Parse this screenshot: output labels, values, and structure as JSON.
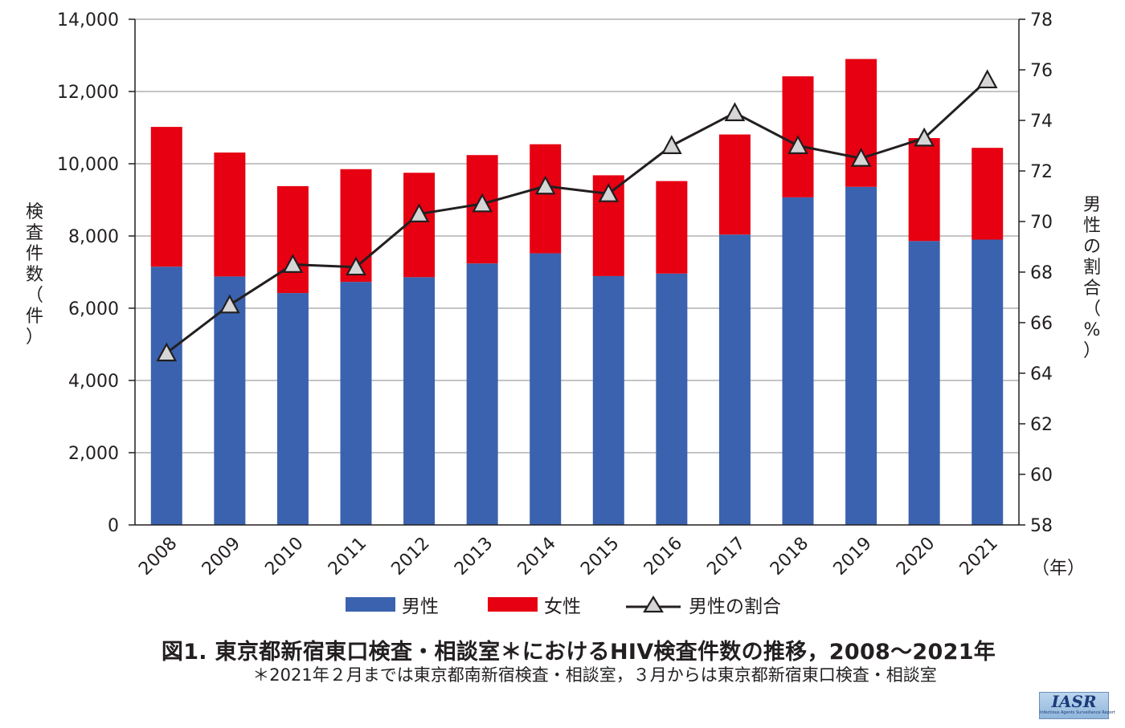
{
  "chart_data": {
    "type": "bar+line",
    "stacked": true,
    "categories": [
      "2008",
      "2009",
      "2010",
      "2011",
      "2012",
      "2013",
      "2014",
      "2015",
      "2016",
      "2017",
      "2018",
      "2019",
      "2020",
      "2021"
    ],
    "series": [
      {
        "name": "男性",
        "type": "bar",
        "axis": "left",
        "color": "#3a62ae",
        "values": [
          7150,
          6880,
          6420,
          6730,
          6860,
          7240,
          7520,
          6890,
          6960,
          8040,
          9070,
          9360,
          7860,
          7900
        ]
      },
      {
        "name": "女性",
        "type": "bar",
        "axis": "left",
        "color": "#e60012",
        "values": [
          3870,
          3430,
          2960,
          3120,
          2890,
          3000,
          3020,
          2790,
          2560,
          2770,
          3350,
          3540,
          2850,
          2540
        ]
      },
      {
        "name": "男性の割合",
        "type": "line",
        "axis": "right",
        "color": "#231f20",
        "values": [
          64.8,
          66.7,
          68.3,
          68.2,
          70.3,
          70.7,
          71.4,
          71.1,
          73.0,
          74.3,
          73.0,
          72.5,
          73.3,
          75.6
        ]
      }
    ],
    "y_left": {
      "label_chars": [
        "検",
        "査",
        "件",
        "数",
        "（",
        "件",
        "）"
      ],
      "min": 0,
      "max": 14000,
      "ticks": [
        "0",
        "2,000",
        "4,000",
        "6,000",
        "8,000",
        "10,000",
        "12,000",
        "14,000"
      ]
    },
    "y_right": {
      "label_chars": [
        "男",
        "性",
        "の",
        "割",
        "合",
        "（",
        "%",
        "）"
      ],
      "min": 58,
      "max": 78,
      "ticks": [
        "58",
        "60",
        "62",
        "64",
        "66",
        "68",
        "70",
        "72",
        "74",
        "76",
        "78"
      ]
    },
    "x_unit": "（年）",
    "grid": "horizontal",
    "legend_position": "bottom"
  },
  "caption": {
    "title": "図1. 東京都新宿東口検査・相談室＊におけるHIV検査件数の推移，2008〜2021年",
    "note": "＊2021年２月までは東京都南新宿検査・相談室，３月からは東京都新宿東口検査・相談室"
  },
  "logo": {
    "text": "IASR",
    "subtext": "Infectious Agents Surveillance Report"
  }
}
